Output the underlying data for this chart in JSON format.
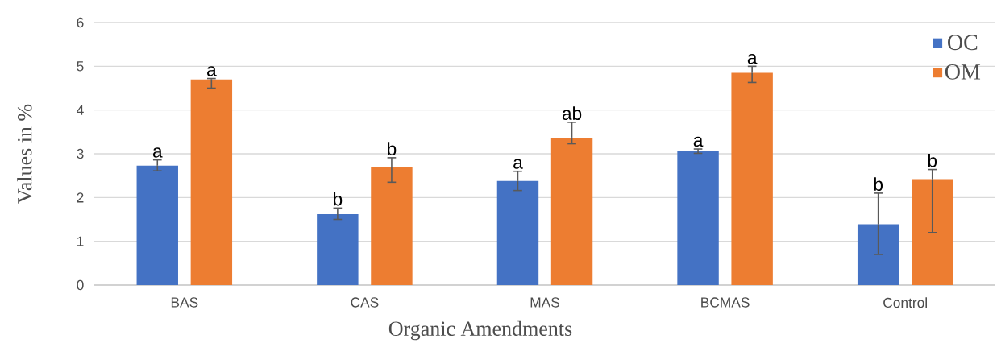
{
  "chart_data": {
    "type": "bar",
    "xlabel": "Organic Amendments",
    "ylabel": "Values in %",
    "categories": [
      "BAS",
      "CAS",
      "MAS",
      "BCMAS",
      "Control"
    ],
    "series": [
      {
        "name": "OC",
        "color": "#4472c4",
        "values": [
          2.73,
          1.62,
          2.38,
          3.06,
          1.39
        ],
        "errors": [
          [
            2.61,
            2.86
          ],
          [
            1.5,
            1.76
          ],
          [
            2.16,
            2.6
          ],
          [
            3.01,
            3.11
          ],
          [
            0.7,
            2.1
          ]
        ]
      },
      {
        "name": "OM",
        "color": "#ed7d31",
        "values": [
          4.7,
          2.69,
          3.37,
          4.85,
          2.42
        ],
        "errors": [
          [
            4.5,
            4.72
          ],
          [
            2.35,
            2.91
          ],
          [
            3.23,
            3.72
          ],
          [
            4.63,
            5.0
          ],
          [
            1.2,
            2.64
          ]
        ]
      }
    ],
    "annotations": [
      "a",
      "a",
      "b",
      "b",
      "a",
      "ab",
      "a",
      "a",
      "b",
      "b"
    ],
    "ylim": [
      0,
      6
    ],
    "yticks": [
      0,
      1,
      2,
      3,
      4,
      5,
      6
    ],
    "grid": "y",
    "legend": "top right"
  }
}
